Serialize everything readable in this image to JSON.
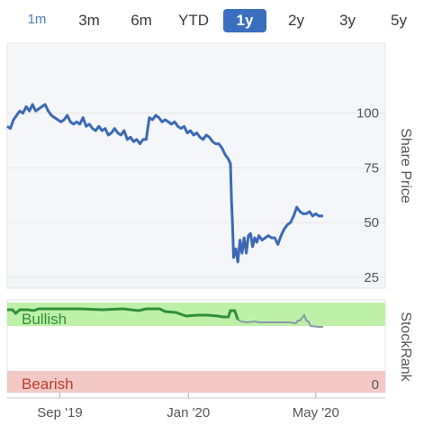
{
  "range_buttons": [
    "1m",
    "3m",
    "6m",
    "YTD",
    "1y",
    "2y",
    "3y",
    "5y"
  ],
  "active_range": "1y",
  "colors": {
    "line": "#3a6ab5",
    "bullish_bg": "#bff0a8",
    "bearish_bg": "#f2c9c5",
    "rank_line": "#2f8f3c",
    "rank_line_after": "#8a97a8",
    "grid": "#e6e6e6",
    "plot_bg": "#f5f6fa"
  },
  "chart_data": [
    {
      "type": "line",
      "ylabel": "Share Price",
      "yticks": [
        25,
        50,
        75,
        100
      ],
      "ylim": [
        20,
        132
      ],
      "x_tick_labels": [
        "Sep '19",
        "Jan '20",
        "May '20"
      ],
      "x_tick_days": [
        0,
        122,
        243
      ],
      "x_range_days": [
        -50,
        309
      ],
      "series": [
        {
          "points": [
            [
              -50,
              94
            ],
            [
              -47,
              93
            ],
            [
              -44,
              97
            ],
            [
              -41,
              99
            ],
            [
              -38,
              101
            ],
            [
              -35,
              100
            ],
            [
              -32,
              103
            ],
            [
              -29,
              101
            ],
            [
              -26,
              104
            ],
            [
              -23,
              101
            ],
            [
              -20,
              102
            ],
            [
              -17,
              103
            ],
            [
              -14,
              104
            ],
            [
              -11,
              101
            ],
            [
              -8,
              99
            ],
            [
              -5,
              98
            ],
            [
              -2,
              97
            ],
            [
              1,
              96
            ],
            [
              4,
              97
            ],
            [
              7,
              99
            ],
            [
              10,
              96
            ],
            [
              13,
              95
            ],
            [
              16,
              96
            ],
            [
              19,
              95
            ],
            [
              22,
              98
            ],
            [
              25,
              94
            ],
            [
              28,
              95
            ],
            [
              31,
              93
            ],
            [
              34,
              92
            ],
            [
              37,
              94
            ],
            [
              40,
              92
            ],
            [
              43,
              93
            ],
            [
              46,
              90
            ],
            [
              49,
              91
            ],
            [
              52,
              93
            ],
            [
              55,
              91
            ],
            [
              58,
              90
            ],
            [
              61,
              92
            ],
            [
              64,
              88
            ],
            [
              67,
              89
            ],
            [
              70,
              87
            ],
            [
              73,
              88
            ],
            [
              76,
              86
            ],
            [
              79,
              88
            ],
            [
              82,
              88
            ],
            [
              85,
              98
            ],
            [
              88,
              97
            ],
            [
              91,
              99
            ],
            [
              94,
              98
            ],
            [
              97,
              96
            ],
            [
              100,
              97
            ],
            [
              103,
              96
            ],
            [
              106,
              95
            ],
            [
              109,
              96
            ],
            [
              112,
              94
            ],
            [
              115,
              93
            ],
            [
              118,
              94
            ],
            [
              121,
              91
            ],
            [
              124,
              92
            ],
            [
              127,
              90
            ],
            [
              130,
              91
            ],
            [
              133,
              89
            ],
            [
              136,
              88
            ],
            [
              139,
              90
            ],
            [
              142,
              89
            ],
            [
              145,
              87
            ],
            [
              148,
              86
            ],
            [
              151,
              86
            ],
            [
              154,
              84
            ],
            [
              157,
              81
            ],
            [
              160,
              79
            ],
            [
              162,
              77
            ],
            [
              163,
              60
            ],
            [
              164,
              48
            ],
            [
              165,
              34
            ],
            [
              167,
              38
            ],
            [
              169,
              32
            ],
            [
              171,
              42
            ],
            [
              173,
              36
            ],
            [
              175,
              43
            ],
            [
              177,
              36
            ],
            [
              179,
              44
            ],
            [
              181,
              45
            ],
            [
              183,
              39
            ],
            [
              185,
              43
            ],
            [
              187,
              41
            ],
            [
              189,
              44
            ],
            [
              192,
              42
            ],
            [
              195,
              43
            ],
            [
              198,
              44
            ],
            [
              201,
              43
            ],
            [
              204,
              43
            ],
            [
              207,
              40
            ],
            [
              210,
              44
            ],
            [
              213,
              47
            ],
            [
              216,
              49
            ],
            [
              219,
              50
            ],
            [
              222,
              53
            ],
            [
              225,
              57
            ],
            [
              228,
              55
            ],
            [
              231,
              54
            ],
            [
              234,
              54
            ],
            [
              237,
              55
            ],
            [
              240,
              53
            ],
            [
              243,
              54
            ],
            [
              246,
              53
            ],
            [
              250,
              53
            ]
          ]
        }
      ]
    },
    {
      "type": "line",
      "ylabel": "StockRank",
      "yticks": [
        0
      ],
      "ylim": [
        0,
        100
      ],
      "bands": [
        "Bullish",
        "Bearish"
      ],
      "series": [
        {
          "points": [
            [
              -50,
              92
            ],
            [
              -45,
              92
            ],
            [
              -42,
              88
            ],
            [
              -38,
              92
            ],
            [
              -30,
              92
            ],
            [
              -25,
              91
            ],
            [
              -20,
              93
            ],
            [
              -10,
              93
            ],
            [
              0,
              93
            ],
            [
              20,
              93
            ],
            [
              40,
              92
            ],
            [
              60,
              93
            ],
            [
              75,
              91
            ],
            [
              82,
              93
            ],
            [
              95,
              93
            ],
            [
              100,
              90
            ],
            [
              110,
              89
            ],
            [
              120,
              85
            ],
            [
              130,
              86
            ],
            [
              140,
              86
            ],
            [
              150,
              85
            ],
            [
              155,
              84
            ],
            [
              160,
              84
            ],
            [
              162,
              91
            ],
            [
              166,
              91
            ],
            [
              169,
              81
            ],
            [
              172,
              79
            ],
            [
              178,
              78
            ],
            [
              185,
              79
            ],
            [
              190,
              78
            ],
            [
              200,
              78
            ],
            [
              210,
              78
            ],
            [
              218,
              78
            ],
            [
              224,
              77
            ],
            [
              226,
              80
            ],
            [
              228,
              80
            ],
            [
              232,
              86
            ],
            [
              234,
              80
            ],
            [
              236,
              79
            ],
            [
              238,
              74
            ],
            [
              245,
              73
            ],
            [
              250,
              73
            ]
          ]
        }
      ]
    }
  ]
}
